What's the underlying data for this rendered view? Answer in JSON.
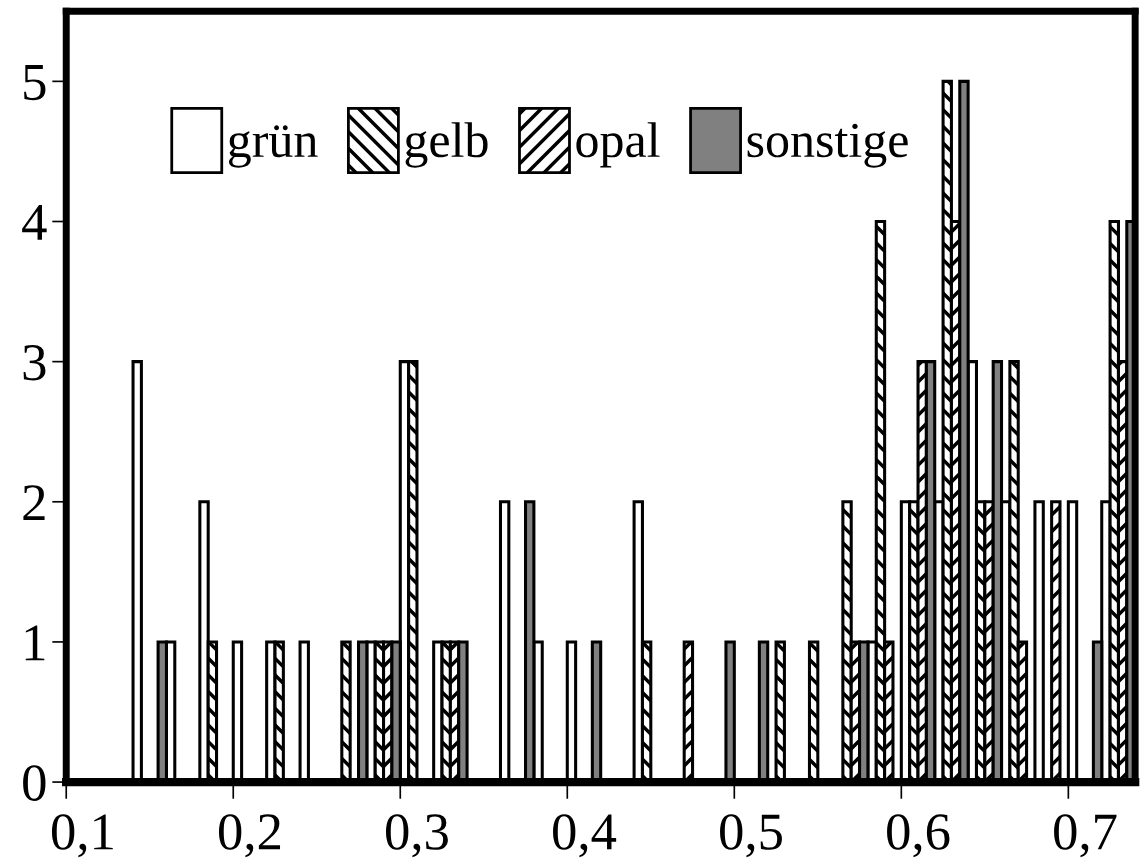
{
  "chart_data": {
    "type": "bar",
    "categories": [
      "0,1",
      null,
      null,
      null,
      null,
      "0,2",
      null,
      null,
      null,
      null,
      "0,3",
      null,
      null,
      null,
      null,
      "0,4",
      null,
      null,
      null,
      null,
      "0,5",
      null,
      null,
      null,
      null,
      "0,6",
      null,
      null,
      null,
      null,
      "0,7",
      null
    ],
    "series": [
      {
        "name": "grün",
        "color": "#ffffff",
        "values": [
          null,
          null,
          3,
          1,
          2,
          1,
          1,
          1,
          null,
          1,
          3,
          1,
          null,
          2,
          1,
          1,
          null,
          2,
          null,
          null,
          null,
          null,
          null,
          null,
          1,
          2,
          2,
          3,
          2,
          2,
          2,
          2
        ]
      },
      {
        "name": "gelb",
        "color": "#000000",
        "values": [
          null,
          null,
          null,
          null,
          1,
          null,
          1,
          null,
          1,
          1,
          3,
          1,
          null,
          null,
          null,
          null,
          null,
          1,
          null,
          null,
          null,
          1,
          1,
          2,
          4,
          2,
          5,
          2,
          3,
          null,
          null,
          4
        ]
      },
      {
        "name": "opal",
        "color": "#000000",
        "values": [
          null,
          null,
          null,
          null,
          null,
          null,
          null,
          null,
          null,
          1,
          null,
          1,
          null,
          null,
          null,
          null,
          null,
          null,
          1,
          null,
          null,
          null,
          null,
          1,
          1,
          3,
          4,
          2,
          1,
          2,
          null,
          3
        ]
      },
      {
        "name": "sonstige",
        "color": "#808080",
        "values": [
          null,
          null,
          1,
          null,
          null,
          null,
          null,
          null,
          1,
          1,
          null,
          1,
          null,
          2,
          null,
          1,
          null,
          null,
          null,
          1,
          1,
          null,
          null,
          1,
          null,
          3,
          5,
          3,
          null,
          null,
          1,
          4
        ]
      }
    ],
    "ylim": [
      0,
      5.5
    ],
    "yticks": [
      0,
      1,
      2,
      3,
      4,
      5
    ],
    "grid": false,
    "legend": "top left"
  }
}
